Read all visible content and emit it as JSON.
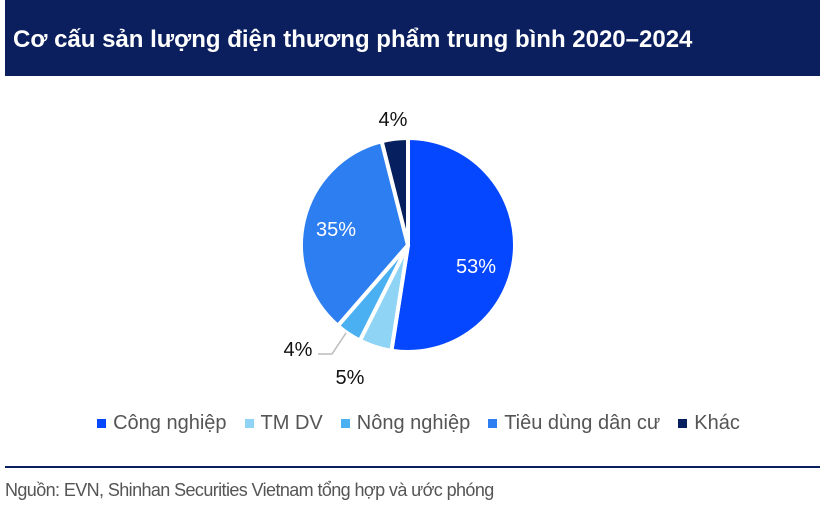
{
  "title": "Cơ cấu sản lượng điện thương phẩm trung bình 2020–2024",
  "source": "Nguồn: EVN, Shinhan Securities Vietnam tổng hợp và ước phóng",
  "chart_data": {
    "type": "pie",
    "title": "Cơ cấu sản lượng điện thương phẩm trung bình 2020–2024",
    "categories": [
      "Công nghiệp",
      "TM DV",
      "Nông nghiệp",
      "Tiêu dùng dân cư",
      "Khác"
    ],
    "values": [
      53,
      5,
      4,
      35,
      4
    ],
    "labels": [
      "53%",
      "5%",
      "4%",
      "35%",
      "4%"
    ],
    "colors": [
      "#0547ff",
      "#8fd3f5",
      "#4ab0f2",
      "#2d7ef0",
      "#06205f"
    ],
    "legend_position": "bottom"
  }
}
